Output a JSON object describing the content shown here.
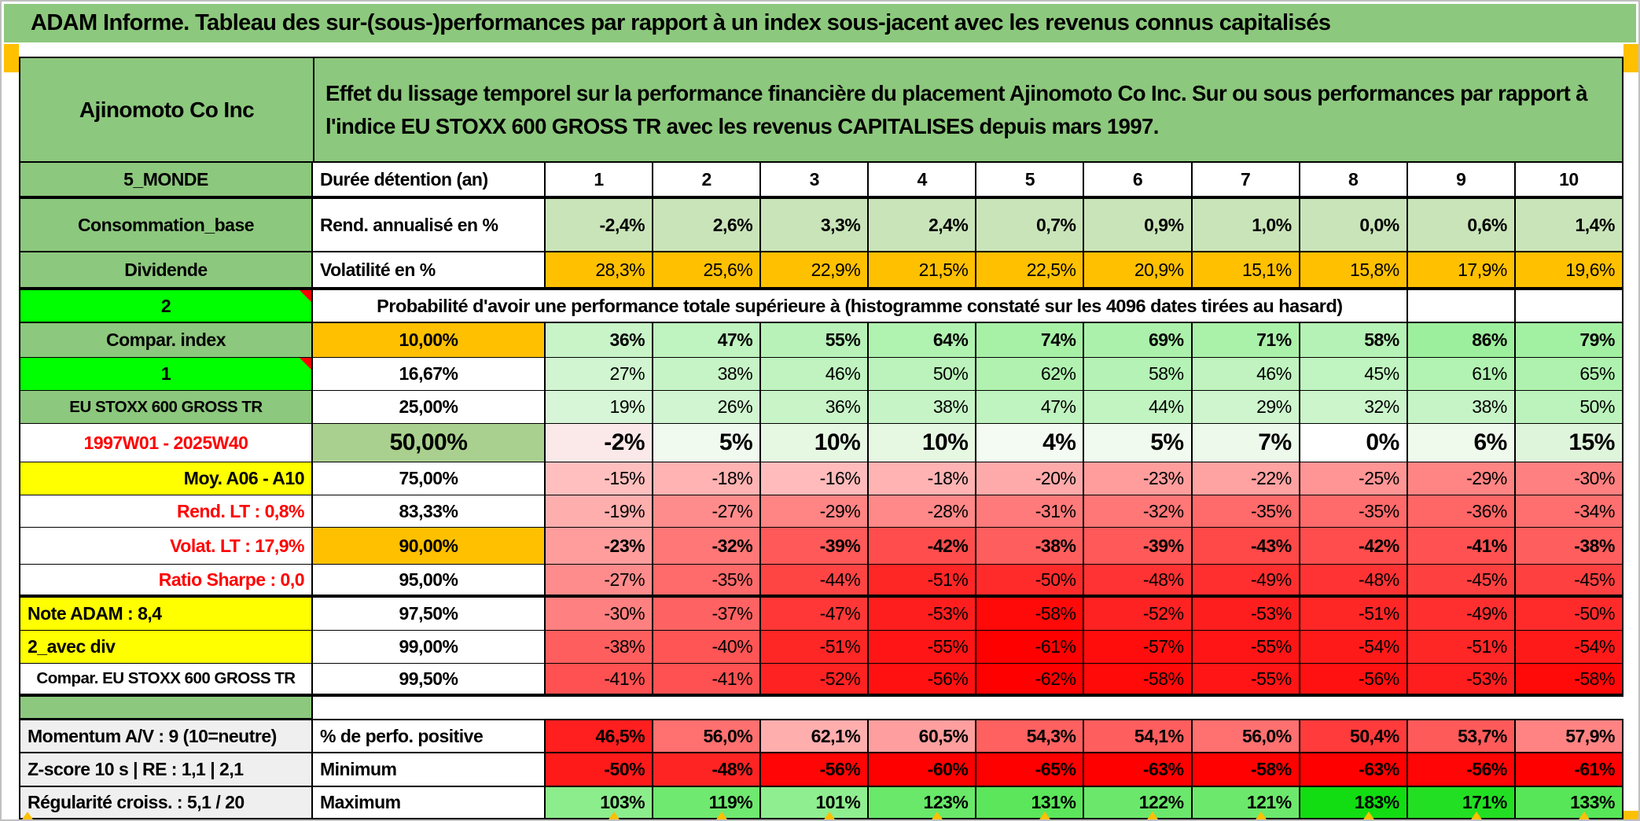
{
  "title": "ADAM Informe. Tableau des sur-(sous-)performances par rapport à un index sous-jacent avec les revenus connus capitalisés",
  "header": {
    "instrument": "Ajinomoto Co Inc",
    "description": "Effet du lissage temporel sur la performance financière du placement Ajinomoto Co Inc. Sur ou sous performances par rapport à l'indice EU STOXX 600 GROSS TR avec les revenus CAPITALISES depuis mars 1997."
  },
  "colors": {
    "band_green": "#8CC87D",
    "bright_green": "#00FF00",
    "orange": "#FFC000",
    "yellow": "#FFFF00",
    "light_green_band": "#C9E4B9",
    "mid_green": "#A9D08E",
    "gray_label": "#EFEFEF",
    "red_text": "#FF0000"
  },
  "table": {
    "rows": [
      {
        "key": "cols",
        "type": "data",
        "left": {
          "text": "5_MONDE",
          "bg": "#8CC87D",
          "align": "center"
        },
        "mid": {
          "text": "Durée détention (an)",
          "align": "left"
        },
        "values": [
          "1",
          "2",
          "3",
          "4",
          "5",
          "6",
          "7",
          "8",
          "9",
          "10"
        ],
        "bgs": null,
        "bold": true,
        "center": true
      },
      {
        "key": "rend",
        "type": "data",
        "left": {
          "text": "Consommation_base",
          "bg": "#8CC87D",
          "align": "center"
        },
        "mid": {
          "text": "Rend. annualisé en %",
          "align": "left"
        },
        "values": [
          "-2,4%",
          "2,6%",
          "3,3%",
          "2,4%",
          "0,7%",
          "0,9%",
          "1,0%",
          "0,0%",
          "0,6%",
          "1,4%"
        ],
        "bgs": [
          "#C9E4B9",
          "#C9E4B9",
          "#C9E4B9",
          "#C9E4B9",
          "#C9E4B9",
          "#C9E4B9",
          "#C9E4B9",
          "#C9E4B9",
          "#C9E4B9",
          "#C9E4B9"
        ],
        "bold": true
      },
      {
        "key": "vol",
        "type": "data",
        "left": {
          "text": "Dividende",
          "bg": "#8CC87D",
          "align": "center"
        },
        "mid": {
          "text": "Volatilité en %",
          "align": "left"
        },
        "values": [
          "28,3%",
          "25,6%",
          "22,9%",
          "21,5%",
          "22,5%",
          "20,9%",
          "15,1%",
          "15,8%",
          "17,9%",
          "19,6%"
        ],
        "bgs": [
          "#FFC000",
          "#FFC000",
          "#FFC000",
          "#FFC000",
          "#FFC000",
          "#FFC000",
          "#FFC000",
          "#FFC000",
          "#FFC000",
          "#FFC000"
        ],
        "bold": false
      },
      {
        "key": "prob",
        "type": "prob",
        "left": {
          "text": "2",
          "bg": "#00FF00",
          "align": "center",
          "marker": true
        },
        "text": "Probabilité d'avoir une performance totale supérieure à (histogramme constaté sur les 4096 dates tirées au hasard)",
        "empties": 2
      },
      {
        "key": "p10",
        "type": "data",
        "left": {
          "text": "Compar. index",
          "bg": "#8CC87D",
          "align": "center"
        },
        "mid": {
          "text": "10,00%",
          "bg": "#FFC000"
        },
        "values": [
          "36%",
          "47%",
          "55%",
          "64%",
          "74%",
          "69%",
          "71%",
          "58%",
          "86%",
          "79%"
        ],
        "bgs": [
          "#C8F4C8",
          "#BFF3BF",
          "#B8F2B8",
          "#B0F2B0",
          "#A7F1A7",
          "#ABF1AB",
          "#AAF1AA",
          "#B5F2B5",
          "#9CEF9C",
          "#A2F0A2"
        ],
        "bold": true
      },
      {
        "key": "p16",
        "type": "data",
        "left": {
          "text": "1",
          "bg": "#00FF00",
          "align": "center",
          "marker": true
        },
        "mid": {
          "text": "16,67%"
        },
        "values": [
          "27%",
          "38%",
          "46%",
          "50%",
          "62%",
          "58%",
          "46%",
          "45%",
          "61%",
          "65%"
        ],
        "bgs": [
          "#D0F5D0",
          "#C7F4C7",
          "#C0F3C0",
          "#BCF3BC",
          "#B1F2B1",
          "#B5F2B5",
          "#C0F3C0",
          "#C0F4C0",
          "#B2F2B2",
          "#AFF1AF"
        ],
        "bold": false
      },
      {
        "key": "p25",
        "type": "data",
        "left": {
          "text": "EU STOXX 600 GROSS TR",
          "bg": "#8CC87D",
          "align": "center",
          "small": true
        },
        "mid": {
          "text": "25,00%"
        },
        "values": [
          "19%",
          "26%",
          "36%",
          "38%",
          "47%",
          "44%",
          "29%",
          "32%",
          "38%",
          "50%"
        ],
        "bgs": [
          "#D7F6D7",
          "#D1F5D1",
          "#C8F4C8",
          "#C7F4C7",
          "#BFF3BF",
          "#C1F4C1",
          "#CEF5CE",
          "#CCF5CC",
          "#C7F4C7",
          "#BCF3BC"
        ],
        "bold": false
      },
      {
        "key": "p50",
        "type": "data",
        "left": {
          "text": "1997W01 - 2025W40",
          "color": "#FF0000",
          "align": "center"
        },
        "mid": {
          "text": "50,00%",
          "bg": "#A9D08E"
        },
        "values": [
          "-2%",
          "5%",
          "10%",
          "10%",
          "4%",
          "5%",
          "7%",
          "0%",
          "6%",
          "15%"
        ],
        "bgs": [
          "#FBE9E9",
          "#F1FAEF",
          "#E6F7E2",
          "#E6F7E2",
          "#F4FBF2",
          "#F1FAEF",
          "#EDF9EA",
          "#FFFFFF",
          "#EFFAEC",
          "#DFF5DB"
        ],
        "bold": true,
        "size": "lg"
      },
      {
        "key": "p75",
        "type": "data",
        "left": {
          "text": "Moy. A06 - A10",
          "bg": "#FFFF00",
          "align": "right"
        },
        "mid": {
          "text": "75,00%"
        },
        "values": [
          "-15%",
          "-18%",
          "-16%",
          "-18%",
          "-20%",
          "-23%",
          "-22%",
          "-25%",
          "-29%",
          "-30%"
        ],
        "bgs": [
          "#FFBFBF",
          "#FFB3B3",
          "#FFBBBB",
          "#FFB3B3",
          "#FFAAAA",
          "#FF9D9D",
          "#FFA2A2",
          "#FF9595",
          "#FF8484",
          "#FF8080"
        ],
        "bold": false
      },
      {
        "key": "p83",
        "type": "data",
        "left": {
          "text": "Rend. LT :   0,8%",
          "color": "#FF0000",
          "align": "right"
        },
        "mid": {
          "text": "83,33%"
        },
        "values": [
          "-19%",
          "-27%",
          "-29%",
          "-28%",
          "-31%",
          "-32%",
          "-35%",
          "-35%",
          "-36%",
          "-34%"
        ],
        "bgs": [
          "#FFAEAE",
          "#FF8C8C",
          "#FF8484",
          "#FF8888",
          "#FF7B7B",
          "#FF7777",
          "#FF6A6A",
          "#FF6A6A",
          "#FF6666",
          "#FF6F6F"
        ],
        "bold": false
      },
      {
        "key": "p90",
        "type": "data",
        "left": {
          "text": "Volat. LT :   17,9%",
          "color": "#FF0000",
          "align": "right"
        },
        "mid": {
          "text": "90,00%",
          "bg": "#FFC000"
        },
        "values": [
          "-23%",
          "-32%",
          "-39%",
          "-42%",
          "-38%",
          "-39%",
          "-43%",
          "-42%",
          "-41%",
          "-38%"
        ],
        "bgs": [
          "#FF9D9D",
          "#FF7777",
          "#FF5959",
          "#FF4D4D",
          "#FF5E5E",
          "#FF5959",
          "#FF4848",
          "#FF4D4D",
          "#FF5151",
          "#FF5E5E"
        ],
        "bold": true
      },
      {
        "key": "p95",
        "type": "data",
        "left": {
          "text": "Ratio Sharpe :   0,0",
          "color": "#FF0000",
          "align": "right"
        },
        "mid": {
          "text": "95,00%"
        },
        "values": [
          "-27%",
          "-35%",
          "-44%",
          "-51%",
          "-50%",
          "-48%",
          "-49%",
          "-48%",
          "-45%",
          "-45%"
        ],
        "bgs": [
          "#FF8C8C",
          "#FF6A6A",
          "#FF4444",
          "#FF2626",
          "#FF2B2B",
          "#FF3333",
          "#FF2F2F",
          "#FF3333",
          "#FF4040",
          "#FF4040"
        ],
        "bold": false
      },
      {
        "key": "p975",
        "type": "data",
        "left": {
          "text": "Note ADAM : 8,4",
          "bg": "#FFFF00",
          "align": "left"
        },
        "mid": {
          "text": "97,50%"
        },
        "values": [
          "-30%",
          "-37%",
          "-47%",
          "-53%",
          "-58%",
          "-52%",
          "-53%",
          "-51%",
          "-49%",
          "-50%"
        ],
        "bgs": [
          "#FF8080",
          "#FF6262",
          "#FF3737",
          "#FF1E1E",
          "#FF0909",
          "#FF2222",
          "#FF1E1E",
          "#FF2626",
          "#FF2F2F",
          "#FF2B2B"
        ],
        "bold": false
      },
      {
        "key": "p99",
        "type": "data",
        "left": {
          "text": "2_avec div",
          "bg": "#FFFF00",
          "align": "left"
        },
        "mid": {
          "text": "99,00%"
        },
        "values": [
          "-38%",
          "-40%",
          "-51%",
          "-55%",
          "-61%",
          "-57%",
          "-55%",
          "-54%",
          "-51%",
          "-54%"
        ],
        "bgs": [
          "#FF5E5E",
          "#FF5555",
          "#FF2626",
          "#FF1515",
          "#FF0000",
          "#FF0D0D",
          "#FF1515",
          "#FF1A1A",
          "#FF2626",
          "#FF1A1A"
        ],
        "bold": false
      },
      {
        "key": "p995",
        "type": "data",
        "left": {
          "text": "Compar. EU STOXX 600 GROSS TR",
          "align": "center",
          "small": true
        },
        "mid": {
          "text": "99,50%"
        },
        "values": [
          "-41%",
          "-41%",
          "-52%",
          "-56%",
          "-62%",
          "-58%",
          "-55%",
          "-56%",
          "-53%",
          "-58%"
        ],
        "bgs": [
          "#FF5151",
          "#FF5151",
          "#FF2222",
          "#FF1111",
          "#FF0000",
          "#FF0909",
          "#FF1515",
          "#FF1111",
          "#FF1E1E",
          "#FF0909"
        ],
        "bold": false
      },
      {
        "key": "spacer",
        "type": "spacer",
        "left": {
          "bg": "#8CC87D"
        }
      },
      {
        "key": "perfpos",
        "type": "data",
        "left": {
          "text": "Momentum A/V : 9 (10=neutre)",
          "bg": "#EFEFEF",
          "align": "left"
        },
        "mid": {
          "text": "% de perfo. positive",
          "align": "left"
        },
        "values": [
          "46,5%",
          "56,0%",
          "62,1%",
          "60,5%",
          "54,3%",
          "54,1%",
          "56,0%",
          "50,4%",
          "53,7%",
          "57,9%"
        ],
        "bgs": [
          "#FF1F1F",
          "#FF7070",
          "#FFAEAE",
          "#FF9E9E",
          "#FF6060",
          "#FF5E5E",
          "#FF7070",
          "#FF3B3B",
          "#FF5A5A",
          "#FF8383"
        ],
        "bold": true
      },
      {
        "key": "min",
        "type": "data",
        "left": {
          "text": "Z-score 10 s | RE : 1,1 | 2,1",
          "bg": "#EFEFEF",
          "align": "left"
        },
        "mid": {
          "text": "Minimum",
          "align": "left"
        },
        "values": [
          "-50%",
          "-48%",
          "-56%",
          "-60%",
          "-65%",
          "-63%",
          "-58%",
          "-63%",
          "-56%",
          "-61%"
        ],
        "bgs": [
          "#FF1A1A",
          "#FF2424",
          "#FF0505",
          "#FF0000",
          "#FF0000",
          "#FF0000",
          "#FF0101",
          "#FF0000",
          "#FF0505",
          "#FF0000"
        ],
        "bold": true
      },
      {
        "key": "max",
        "type": "data",
        "left": {
          "text": "Régularité croiss. : 5,1 / 20",
          "bg": "#EFEFEF",
          "align": "left"
        },
        "mid": {
          "text": "Maximum",
          "align": "left"
        },
        "values": [
          "103%",
          "119%",
          "101%",
          "123%",
          "131%",
          "122%",
          "121%",
          "183%",
          "171%",
          "133%"
        ],
        "bgs": [
          "#8CED8C",
          "#6FE96F",
          "#8FEE8F",
          "#69E869",
          "#5BE65B",
          "#6BE86B",
          "#6CE96C",
          "#12DD12",
          "#23DF23",
          "#57E657"
        ],
        "bold": true
      }
    ]
  }
}
